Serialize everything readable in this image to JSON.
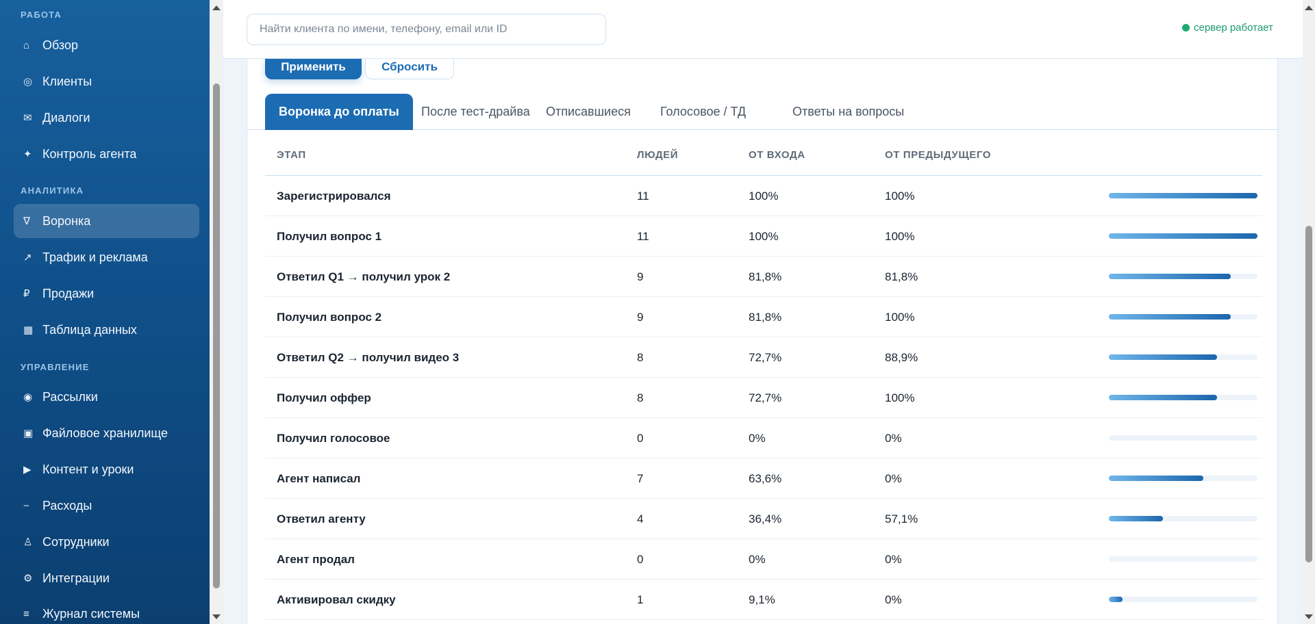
{
  "sidebar": {
    "sections": [
      {
        "title": "РАБОТА"
      },
      {
        "title": "АНАЛИТИКА"
      },
      {
        "title": "УПРАВЛЕНИЕ"
      }
    ],
    "items": [
      {
        "label": "Обзор",
        "icon": "home-icon",
        "glyph": "⌂"
      },
      {
        "label": "Клиенты",
        "icon": "clients-icon",
        "glyph": "◎"
      },
      {
        "label": "Диалоги",
        "icon": "mail-icon",
        "glyph": "✉"
      },
      {
        "label": "Контроль агента",
        "icon": "sparkle-icon",
        "glyph": "✦"
      },
      {
        "label": "Воронка",
        "icon": "funnel-icon",
        "glyph": "∇"
      },
      {
        "label": "Трафик и реклама",
        "icon": "arrow-up-right-icon",
        "glyph": "↗"
      },
      {
        "label": "Продажи",
        "icon": "ruble-icon",
        "glyph": "₽"
      },
      {
        "label": "Таблица данных",
        "icon": "grid-icon",
        "glyph": "▦"
      },
      {
        "label": "Рассылки",
        "icon": "broadcast-icon",
        "glyph": "◉"
      },
      {
        "label": "Файловое хранилище",
        "icon": "storage-icon",
        "glyph": "▣"
      },
      {
        "label": "Контент и уроки",
        "icon": "play-icon",
        "glyph": "▶"
      },
      {
        "label": "Расходы",
        "icon": "minus-icon",
        "glyph": "−"
      },
      {
        "label": "Сотрудники",
        "icon": "person-icon",
        "glyph": "♙"
      },
      {
        "label": "Интеграции",
        "icon": "gear-icon",
        "glyph": "⚙"
      },
      {
        "label": "Журнал системы",
        "icon": "list-icon",
        "glyph": "≡"
      }
    ],
    "active_item": "Воронка"
  },
  "header": {
    "search_placeholder": "Найти клиента по имени, телефону, email или ID",
    "search_value": "",
    "status_text": "сервер работает",
    "status_color": "#1ea873"
  },
  "filters": {
    "apply_label": "Применить",
    "reset_label": "Сбросить"
  },
  "tabs": [
    {
      "label": "Воронка до оплаты",
      "active": true
    },
    {
      "label": "После тест-драйва",
      "active": false
    },
    {
      "label": "Отписавшиеся",
      "active": false
    },
    {
      "label": "Голосовое / ТД",
      "active": false
    },
    {
      "label": "Ответы на вопросы",
      "active": false
    }
  ],
  "table": {
    "headers": {
      "stage": "ЭТАП",
      "people": "ЛЮДЕЙ",
      "from_entry": "ОТ ВХОДА",
      "from_prev": "ОТ ПРЕДЫДУЩЕГО"
    },
    "rows": [
      {
        "stage": "Зарегистрировался",
        "people": "11",
        "from_entry": "100%",
        "from_prev": "100%",
        "share": 1.0
      },
      {
        "stage": "Получил вопрос 1",
        "people": "11",
        "from_entry": "100%",
        "from_prev": "100%",
        "share": 1.0
      },
      {
        "stage": "Ответил Q1 → получил урок 2",
        "people": "9",
        "from_entry": "81,8%",
        "from_prev": "81,8%",
        "share": 0.818
      },
      {
        "stage": "Получил вопрос 2",
        "people": "9",
        "from_entry": "81,8%",
        "from_prev": "100%",
        "share": 0.818
      },
      {
        "stage": "Ответил Q2 → получил видео 3",
        "people": "8",
        "from_entry": "72,7%",
        "from_prev": "88,9%",
        "share": 0.727
      },
      {
        "stage": "Получил оффер",
        "people": "8",
        "from_entry": "72,7%",
        "from_prev": "100%",
        "share": 0.727
      },
      {
        "stage": "Получил голосовое",
        "people": "0",
        "from_entry": "0%",
        "from_prev": "0%",
        "share": 0.0
      },
      {
        "stage": "Агент написал",
        "people": "7",
        "from_entry": "63,6%",
        "from_prev": "0%",
        "share": 0.636
      },
      {
        "stage": "Ответил агенту",
        "people": "4",
        "from_entry": "36,4%",
        "from_prev": "57,1%",
        "share": 0.364
      },
      {
        "stage": "Агент продал",
        "people": "0",
        "from_entry": "0%",
        "from_prev": "0%",
        "share": 0.0
      },
      {
        "stage": "Активировал скидку",
        "people": "1",
        "from_entry": "9,1%",
        "from_prev": "0%",
        "share": 0.091
      }
    ]
  },
  "colors": {
    "accent": "#1c6cb3",
    "sidebar_top": "#17609e",
    "sidebar_bottom": "#0b3f70"
  }
}
